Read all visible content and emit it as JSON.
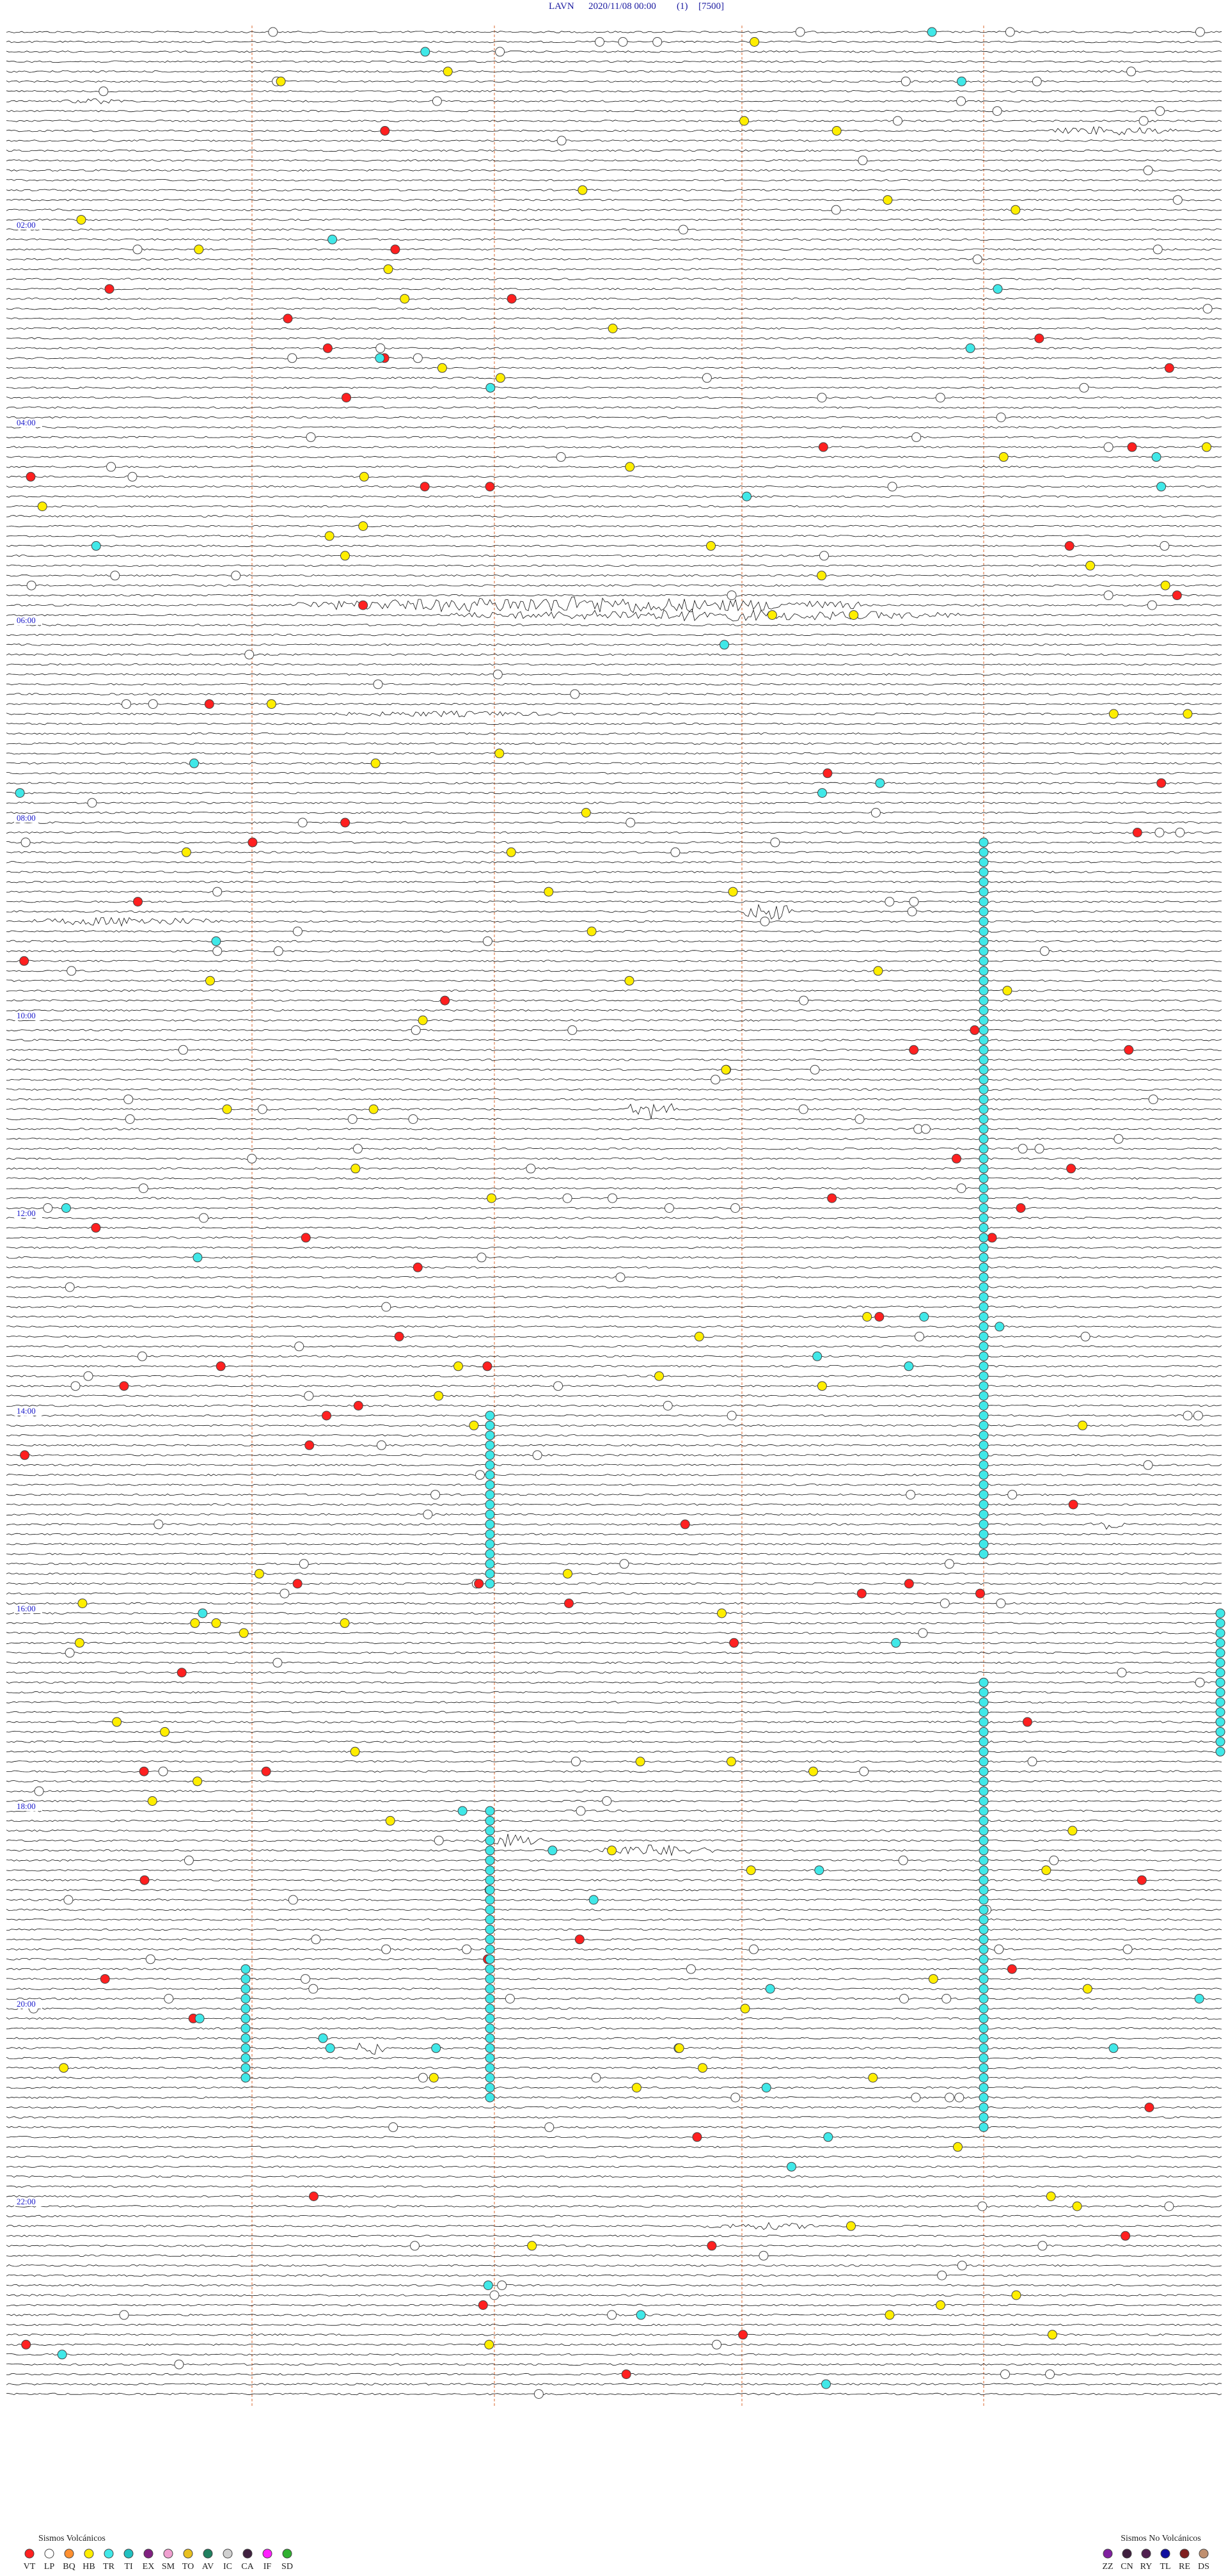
{
  "header": {
    "station": "LAVN",
    "datetime": "2020/11/08 00:00",
    "channel": "(1)",
    "scale": "[7500]"
  },
  "hour_labels": [
    "02:00",
    "04:00",
    "06:00",
    "08:00",
    "10:00",
    "12:00",
    "14:00",
    "16:00",
    "18:00",
    "20:00",
    "22:00"
  ],
  "legend": {
    "volcanic": {
      "title": "Sismos Volcánicos",
      "codes": [
        "VT",
        "LP",
        "BQ",
        "HB",
        "TR",
        "TI",
        "EX",
        "SM",
        "TO",
        "AV",
        "IC",
        "CA",
        "IF",
        "SD"
      ]
    },
    "non_volcanic": {
      "title": "Sismos No Volcánicos",
      "codes": [
        "ZZ",
        "CN",
        "RY",
        "TL",
        "RE",
        "DS"
      ]
    }
  }
}
